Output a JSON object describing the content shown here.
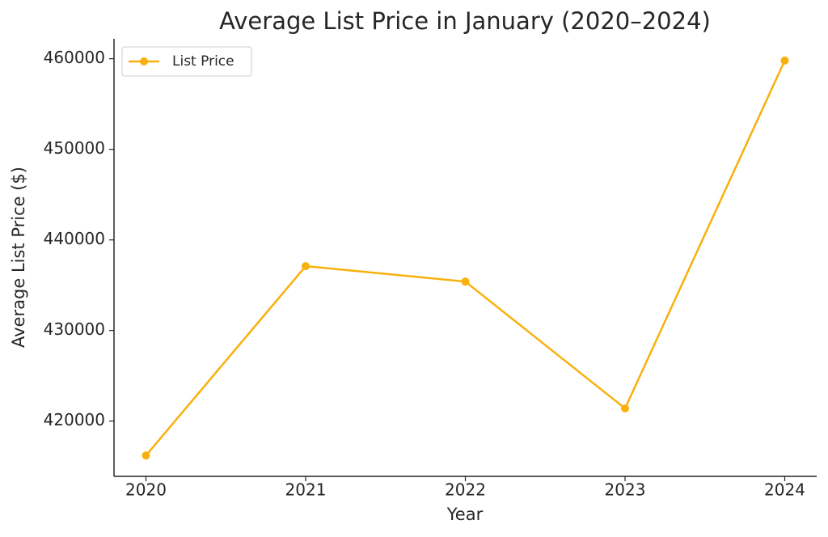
{
  "chart_data": {
    "type": "line",
    "title": "Average List Price in January (2020–2024)",
    "x_label": "Year",
    "y_label": "Average List Price ($)",
    "x": [
      2020,
      2021,
      2022,
      2023,
      2024
    ],
    "series": [
      {
        "name": "List Price",
        "color": "#f9b00c",
        "values": [
          416200,
          437100,
          435400,
          421400,
          459800
        ]
      }
    ],
    "xlim": [
      2019.8,
      2024.2
    ],
    "xticks": [
      2020,
      2021,
      2022,
      2023,
      2024
    ],
    "ylim": [
      413900,
      462200
    ],
    "yticks": [
      420000,
      430000,
      440000,
      450000,
      460000
    ],
    "grid": false,
    "legend": "upper left"
  }
}
